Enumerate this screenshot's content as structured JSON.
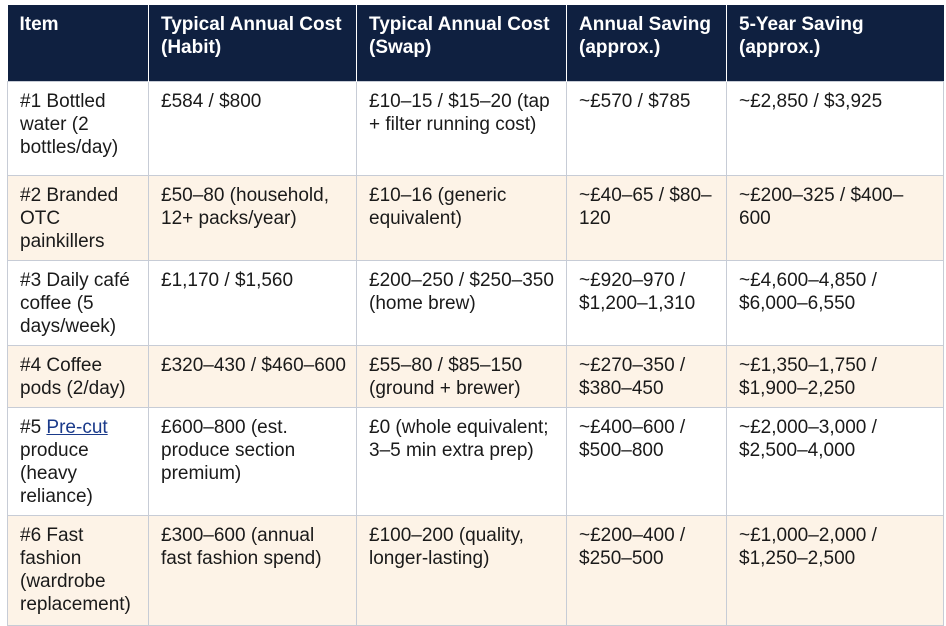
{
  "table": {
    "headers": [
      "Item",
      "Typical Annual Cost (Habit)",
      "Typical Annual Cost (Swap)",
      "Annual Saving (approx.)",
      "5-Year Saving (approx.)"
    ],
    "rows": [
      {
        "item": "#1 Bottled water (2 bottles/day)",
        "habit": "£584 / $800",
        "swap": "£10–15 / $15–20 (tap + filter running cost)",
        "annual": "~£570 / $785",
        "five_year": "~£2,850 / $3,925"
      },
      {
        "item": "#2 Branded OTC painkillers",
        "habit": "£50–80 (household, 12+ packs/year)",
        "swap": "£10–16 (generic equivalent)",
        "annual": "~£40–65 / $80–120",
        "five_year": "~£200–325 / $400–600"
      },
      {
        "item": "#3 Daily café coffee (5 days/week)",
        "habit": "£1,170 / $1,560",
        "swap": "£200–250 / $250–350 (home brew)",
        "annual": "~£920–970 / $1,200–1,310",
        "five_year": "~£4,600–4,850 / $6,000–6,550"
      },
      {
        "item": "#4 Coffee pods (2/day)",
        "habit": "£320–430 / $460–600",
        "swap": "£55–80 / $85–150 (ground + brewer)",
        "annual": "~£270–350 / $380–450",
        "five_year": "~£1,350–1,750 / $1,900–2,250"
      },
      {
        "item_prefix": "#5 ",
        "item_link": "Pre-cut",
        "item_suffix": " produce (heavy reliance)",
        "habit": "£600–800 (est. produce section premium)",
        "swap": "£0 (whole equivalent; 3–5 min extra prep)",
        "annual": "~£400–600 / $500–800",
        "five_year": "~£2,000–3,000 / $2,500–4,000"
      },
      {
        "item": "#6 Fast fashion (wardrobe replacement)",
        "habit": "£300–600 (annual fast fashion spend)",
        "swap": "£100–200 (quality, longer-lasting)",
        "annual": "~£200–400 / $250–500",
        "five_year": "~£1,000–2,000 / $1,250–2,500"
      }
    ]
  }
}
